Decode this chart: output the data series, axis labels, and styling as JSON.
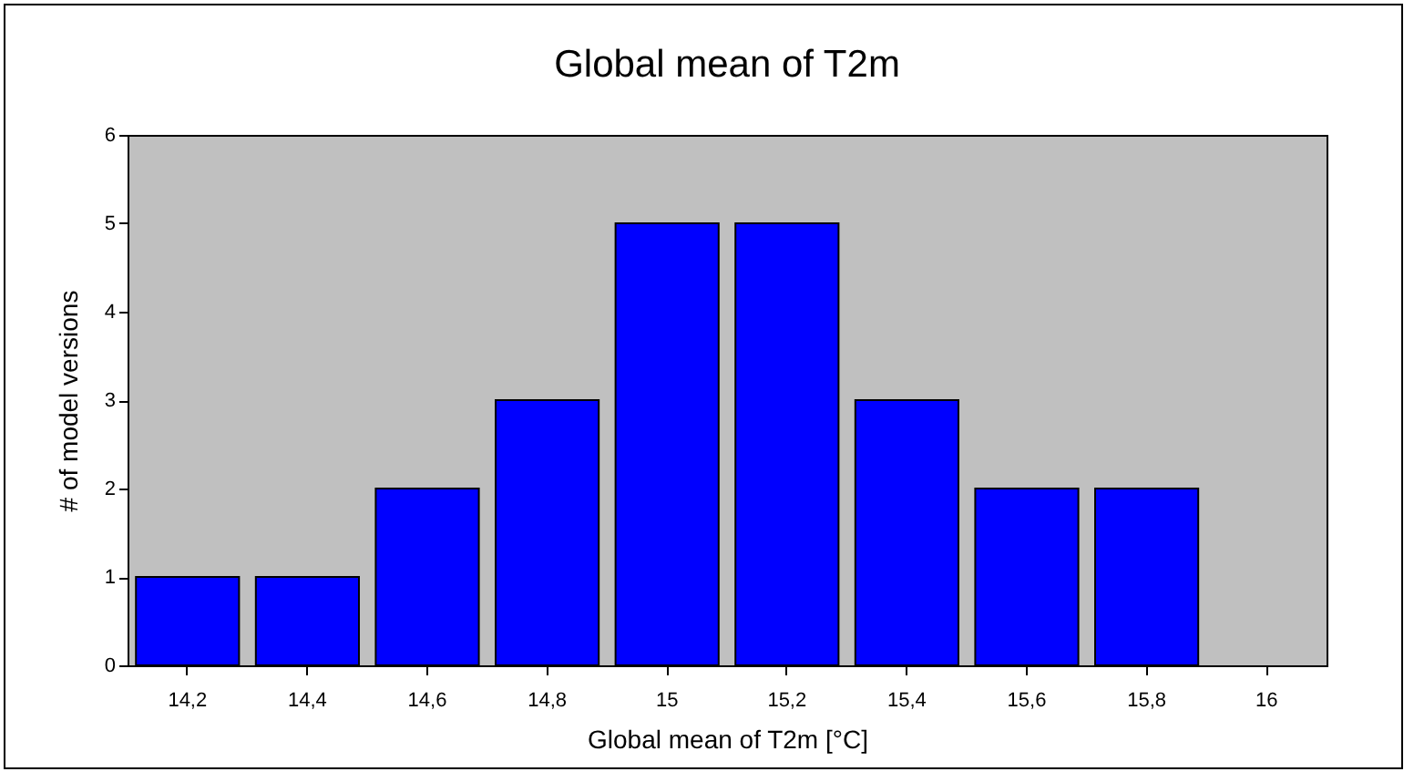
{
  "chart_data": {
    "type": "bar",
    "title": "Global mean of T2m",
    "xlabel": "Global mean of T2m [°C]",
    "ylabel": "# of model versions",
    "categories": [
      "14,2",
      "14,4",
      "14,6",
      "14,8",
      "15",
      "15,2",
      "15,4",
      "15,6",
      "15,8",
      "16"
    ],
    "values": [
      1,
      1,
      2,
      3,
      5,
      5,
      3,
      2,
      2,
      0
    ],
    "color": "#0000ff",
    "ylim": [
      0,
      6
    ],
    "yticks": [
      0,
      1,
      2,
      3,
      4,
      5,
      6
    ],
    "grid": false
  }
}
